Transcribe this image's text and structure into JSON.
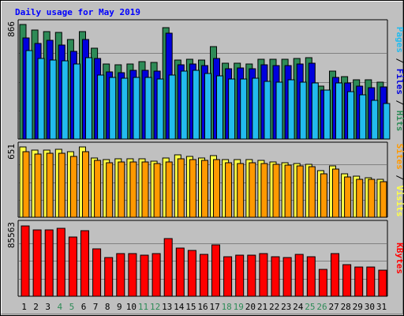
{
  "chart_data": {
    "type": "bar",
    "title": "Daily usage for May 2019",
    "categories": [
      "1",
      "2",
      "3",
      "4",
      "5",
      "6",
      "7",
      "8",
      "9",
      "10",
      "11",
      "12",
      "13",
      "14",
      "15",
      "16",
      "17",
      "18",
      "19",
      "20",
      "21",
      "22",
      "23",
      "24",
      "25",
      "26",
      "27",
      "28",
      "29",
      "30",
      "31"
    ],
    "weekend_days": [
      "4",
      "5",
      "11",
      "12",
      "18",
      "19",
      "25",
      "26"
    ],
    "panels": [
      {
        "id": "hits",
        "max_label": "866",
        "ylim": [
          0,
          866
        ],
        "series": [
          {
            "name": "Hits",
            "color": "#2e8b57",
            "values": [
              866,
              822,
              811,
              808,
              755,
              810,
              689,
              568,
              559,
              566,
              585,
              582,
              844,
              599,
              603,
              598,
              701,
              571,
              572,
              570,
              602,
              602,
              602,
              610,
              613,
              402,
              512,
              470,
              449,
              446,
              431
            ]
          },
          {
            "name": "Files",
            "color": "#0000dd",
            "values": [
              766,
              722,
              745,
              713,
              664,
              751,
              612,
              510,
              503,
              518,
              519,
              511,
              803,
              562,
              570,
              555,
              609,
              532,
              540,
              534,
              561,
              555,
              554,
              569,
              572,
              369,
              468,
              426,
              402,
              391,
              394
            ]
          },
          {
            "name": "Pages",
            "color": "#22bbee",
            "values": [
              669,
              610,
              599,
              591,
              567,
              618,
              484,
              463,
              458,
              466,
              463,
              456,
              486,
              515,
              521,
              496,
              480,
              455,
              453,
              459,
              436,
              430,
              447,
              431,
              424,
              368,
              427,
              357,
              334,
              292,
              270
            ]
          }
        ]
      },
      {
        "id": "visits",
        "max_label": "651",
        "ylim": [
          0,
          651
        ],
        "series": [
          {
            "name": "Visits",
            "color": "#ffff44",
            "values": [
              651,
              624,
              624,
              627,
              604,
              651,
              546,
              537,
              544,
              542,
              543,
              522,
              550,
              575,
              565,
              546,
              572,
              534,
              531,
              536,
              523,
              511,
              505,
              494,
              492,
              431,
              476,
              400,
              380,
              365,
              349
            ]
          },
          {
            "name": "Sites",
            "color": "#ff9900",
            "values": [
              610,
              587,
              596,
              594,
              565,
              606,
              525,
              507,
              510,
              510,
              511,
              498,
              515,
              542,
              537,
              525,
              534,
              508,
              500,
              508,
              497,
              487,
              481,
              473,
              468,
              401,
              449,
              375,
              354,
              350,
              331
            ]
          }
        ]
      },
      {
        "id": "kbytes",
        "max_label": "85563",
        "ylim": [
          0,
          85563
        ],
        "series": [
          {
            "name": "KBytes",
            "color": "#ff0000",
            "values": [
              84800,
              79600,
              79600,
              81800,
              71600,
              79000,
              57400,
              46600,
              51500,
              51500,
              49400,
              51500,
              69400,
              57900,
              55600,
              50500,
              62000,
              47700,
              49400,
              49400,
              51500,
              47700,
              46600,
              50500,
              47700,
              32600,
              51000,
              37600,
              35300,
              35300,
              31500
            ]
          }
        ]
      }
    ],
    "right_labels": [
      {
        "panel": "hits",
        "parts": [
          {
            "text": "Pages",
            "color": "#22bbee"
          },
          {
            "text": " / ",
            "color": "#000000"
          },
          {
            "text": "Files",
            "color": "#0000dd"
          },
          {
            "text": " / ",
            "color": "#000000"
          },
          {
            "text": "Hits",
            "color": "#2e8b57"
          }
        ]
      },
      {
        "panel": "visits",
        "parts": [
          {
            "text": "Sites",
            "color": "#ff9900"
          },
          {
            "text": " / ",
            "color": "#000000"
          },
          {
            "text": "Visits",
            "color": "#ffff44"
          }
        ]
      },
      {
        "panel": "kbytes",
        "parts": [
          {
            "text": "KBytes",
            "color": "#ff0000"
          }
        ]
      }
    ],
    "colors": {
      "title": "#0000ff",
      "weekday_label": "#000000",
      "weekend_label": "#2e8b57",
      "background": "#c0c0c0"
    }
  }
}
